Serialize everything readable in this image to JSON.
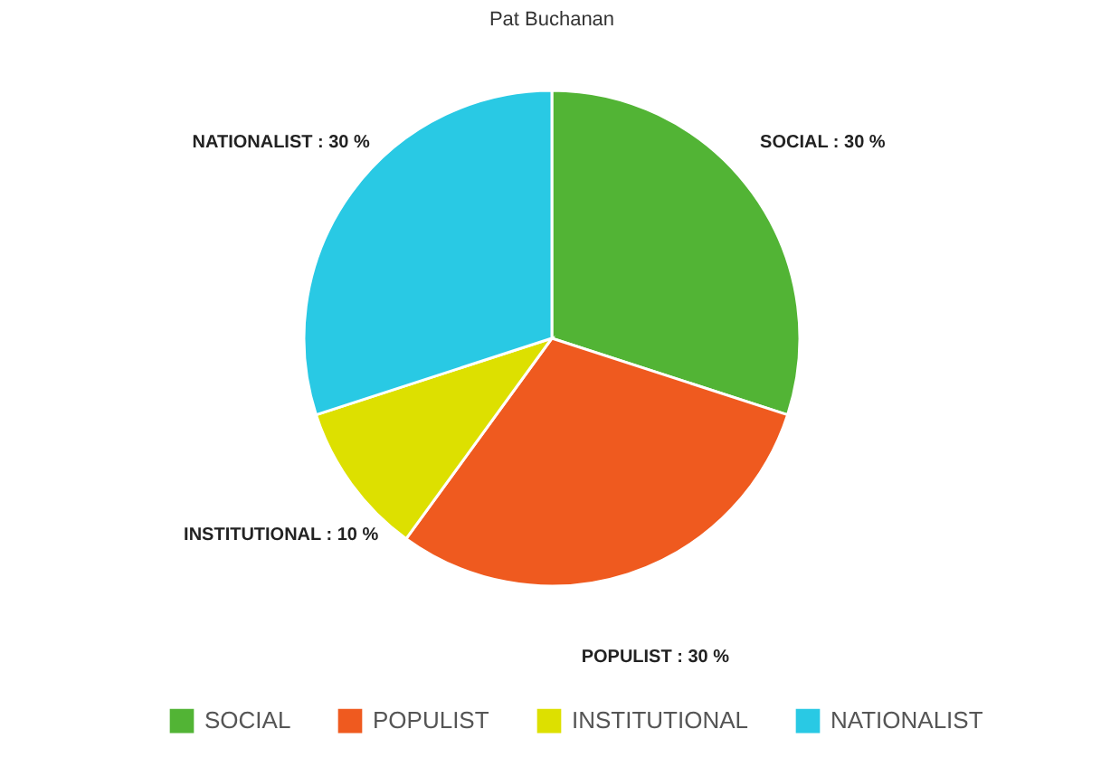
{
  "chart_data": {
    "type": "pie",
    "title": "Pat Buchanan",
    "categories": [
      "SOCIAL",
      "POPULIST",
      "INSTITUTIONAL",
      "NATIONALIST"
    ],
    "values": [
      30,
      30,
      10,
      30
    ],
    "colors": [
      "#52b435",
      "#ef5a1f",
      "#dde000",
      "#29c9e4"
    ],
    "value_labels": [
      "SOCIAL : 30 %",
      "POPULIST : 30 %",
      "INSTITUTIONAL : 10 %",
      "NATIONALIST : 30 %"
    ],
    "legend": "bottom"
  }
}
